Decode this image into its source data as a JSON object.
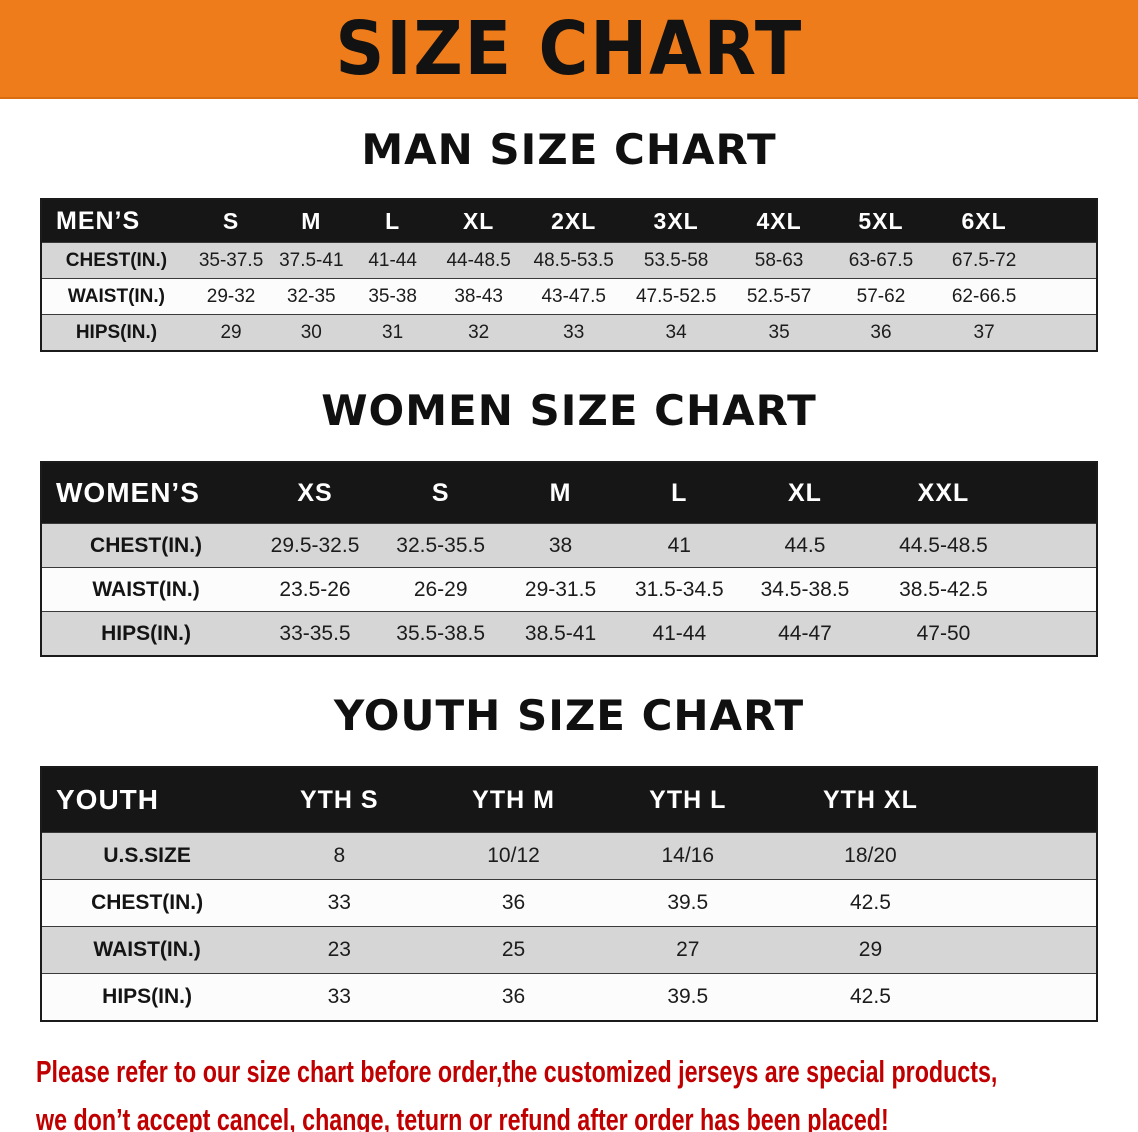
{
  "banner": {
    "title": "SIZE CHART"
  },
  "sections": {
    "men": {
      "title": "MAN SIZE CHART"
    },
    "women": {
      "title": "WOMEN SIZE CHART"
    },
    "youth": {
      "title": "YOUTH SIZE CHART"
    }
  },
  "tables": {
    "men": {
      "header": [
        "MEN’S",
        "S",
        "M",
        "L",
        "XL",
        "2XL",
        "3XL",
        "4XL",
        "5XL",
        "6XL"
      ],
      "rows": [
        [
          "CHEST(IN.)",
          "35-37.5",
          "37.5-41",
          "41-44",
          "44-48.5",
          "48.5-53.5",
          "53.5-58",
          "58-63",
          "63-67.5",
          "67.5-72"
        ],
        [
          "WAIST(IN.)",
          "29-32",
          "32-35",
          "35-38",
          "38-43",
          "43-47.5",
          "47.5-52.5",
          "52.5-57",
          "57-62",
          "62-66.5"
        ],
        [
          "HIPS(IN.)",
          "29",
          "30",
          "31",
          "32",
          "33",
          "34",
          "35",
          "36",
          "37"
        ]
      ]
    },
    "women": {
      "header": [
        "WOMEN’S",
        "XS",
        "S",
        "M",
        "L",
        "XL",
        "XXL"
      ],
      "rows": [
        [
          "CHEST(IN.)",
          "29.5-32.5",
          "32.5-35.5",
          "38",
          "41",
          "44.5",
          "44.5-48.5"
        ],
        [
          "WAIST(IN.)",
          "23.5-26",
          "26-29",
          "29-31.5",
          "31.5-34.5",
          "34.5-38.5",
          "38.5-42.5"
        ],
        [
          "HIPS(IN.)",
          "33-35.5",
          "35.5-38.5",
          "38.5-41",
          "41-44",
          "44-47",
          "47-50"
        ]
      ]
    },
    "youth": {
      "header": [
        "YOUTH",
        "YTH S",
        "YTH M",
        "YTH L",
        "YTH XL"
      ],
      "rows": [
        [
          "U.S.SIZE",
          "8",
          "10/12",
          "14/16",
          "18/20"
        ],
        [
          "CHEST(IN.)",
          "33",
          "36",
          "39.5",
          "42.5"
        ],
        [
          "WAIST(IN.)",
          "23",
          "25",
          "27",
          "29"
        ],
        [
          "HIPS(IN.)",
          "33",
          "36",
          "39.5",
          "42.5"
        ]
      ]
    }
  },
  "disclaimer": {
    "line1": "Please refer to our size chart before order,the customized jerseys are special products,",
    "line2": "we don’t accept cancel, change, teturn or refund after order has been placed!"
  },
  "colors": {
    "banner_orange": "#ee7c1a",
    "header_black": "#161616",
    "row_gray": "#d6d6d6",
    "row_white": "#fcfcfc",
    "text_red": "#c00000"
  }
}
